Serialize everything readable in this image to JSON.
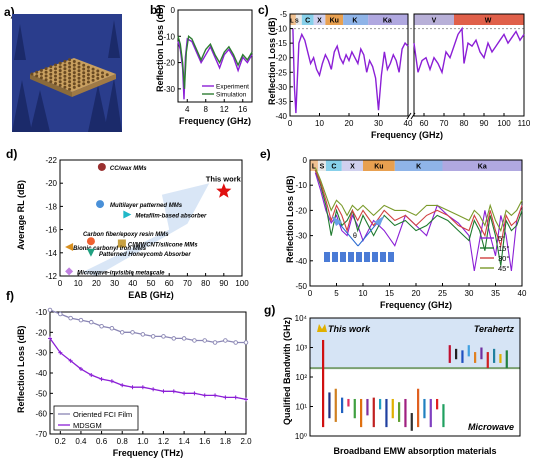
{
  "colors": {
    "purple": "#8b1fd6",
    "green": "#2e7d32",
    "gray_purple": "#8a86b4",
    "band_L": "#f0c090",
    "band_S": "#e8e8e8",
    "band_C": "#87d0ea",
    "band_X": "#d0d0ee",
    "band_Ku": "#e8a050",
    "band_K": "#8fb4e8",
    "band_Ka": "#b0a8e0",
    "band_V": "#b8b0d8",
    "band_W": "#e0604a"
  },
  "panel_labels": {
    "a": "a)",
    "b": "b)",
    "c": "c)",
    "d": "d)",
    "e": "e)",
    "f": "f)",
    "g": "g)"
  },
  "chart_data": [
    {
      "id": "b",
      "type": "line",
      "ylabel": "Reflection Loss (dB)",
      "xlabel": "Frequency (GHz)",
      "xlim": [
        2,
        18
      ],
      "ylim": [
        -35,
        0
      ],
      "xticks": [
        4,
        8,
        12,
        16
      ],
      "yticks": [
        0,
        -10,
        -20,
        -30
      ],
      "legend": {
        "position": "bottom-right"
      },
      "series": [
        {
          "name": "Experiment",
          "color": "#8b1fd6",
          "x": [
            2,
            2.5,
            3,
            3.3,
            3.6,
            4,
            5,
            6,
            7,
            8,
            9,
            10,
            11,
            12,
            13,
            14,
            15,
            16,
            17,
            18
          ],
          "y": [
            -12,
            -15,
            -22,
            -34,
            -18,
            -11,
            -12,
            -16,
            -20,
            -17,
            -14,
            -18,
            -22,
            -17,
            -15,
            -18,
            -23,
            -18,
            -20,
            -17
          ]
        },
        {
          "name": "Simulation",
          "color": "#2e7d32",
          "x": [
            2,
            2.5,
            3,
            3.4,
            3.8,
            4.3,
            5,
            6,
            7,
            8,
            9,
            10,
            11,
            12,
            13,
            14,
            15,
            16,
            17,
            18
          ],
          "y": [
            -10,
            -13,
            -20,
            -30,
            -16,
            -10,
            -11,
            -15,
            -19,
            -15,
            -13,
            -17,
            -20,
            -16,
            -14,
            -17,
            -21,
            -17,
            -19,
            -16
          ]
        }
      ]
    },
    {
      "id": "c",
      "type": "line",
      "ylabel": "Reflection Loss (dB)",
      "xlabel": "Frequency (GHz)",
      "ylim": [
        -40,
        -5
      ],
      "yticks": [
        -5,
        -10,
        -15,
        -20,
        -25,
        -30,
        -35,
        -40
      ],
      "segments": [
        {
          "xlim": [
            0,
            40
          ],
          "xticks": [
            0,
            10,
            20,
            30,
            40
          ]
        },
        {
          "xlim": [
            55,
            110
          ],
          "xticks": [
            60,
            70,
            80,
            90,
            100,
            110
          ]
        }
      ],
      "bands": [
        "L S",
        "C",
        "X",
        "Ku",
        "K",
        "Ka",
        "V",
        "W"
      ],
      "series": [
        {
          "color": "#8b1fd6",
          "x": [
            1,
            1.5,
            2,
            3,
            4,
            5,
            6,
            7,
            8,
            9,
            10,
            11,
            12,
            13,
            14,
            15,
            16,
            17,
            18,
            19,
            20,
            21,
            22,
            23,
            24,
            25,
            26,
            27,
            28,
            29,
            30,
            31,
            32,
            33,
            34,
            35,
            36,
            37,
            38,
            39,
            40
          ],
          "y": [
            -10,
            -30,
            -39,
            -15,
            -12,
            -14,
            -18,
            -22,
            -20,
            -24,
            -26,
            -22,
            -19,
            -21,
            -24,
            -18,
            -16,
            -20,
            -22,
            -19,
            -21,
            -18,
            -20,
            -22,
            -17,
            -19,
            -25,
            -21,
            -23,
            -27,
            -38,
            -26,
            -18,
            -24,
            -22,
            -19,
            -21,
            -25,
            -17,
            -15,
            -16
          ]
        },
        {
          "color": "#8b1fd6",
          "x": [
            55,
            57,
            59,
            61,
            63,
            65,
            67,
            69,
            71,
            73,
            75,
            77,
            79,
            80,
            82,
            84,
            86,
            88,
            90,
            92,
            94,
            96,
            98,
            100,
            102,
            104,
            106,
            108,
            110
          ],
          "y": [
            -15,
            -25,
            -21,
            -20,
            -24,
            -20,
            -22,
            -25,
            -18,
            -20,
            -16,
            -12,
            -10,
            -22,
            -15,
            -16,
            -14,
            -18,
            -20,
            -15,
            -18,
            -16,
            -14,
            -12,
            -15,
            -13,
            -11,
            -14,
            -12
          ]
        }
      ]
    },
    {
      "id": "d",
      "type": "scatter",
      "ylabel": "Average RL (dB)",
      "xlabel": "EAB (GHz)",
      "xlim": [
        0,
        100
      ],
      "ylim": [
        -12,
        -22
      ],
      "xticks": [
        0,
        10,
        20,
        30,
        40,
        50,
        60,
        70,
        80,
        90,
        100
      ],
      "yticks": [
        -12,
        -14,
        -16,
        -18,
        -20,
        -22
      ],
      "points": [
        {
          "label": "This work",
          "x": 90,
          "y": -19.3,
          "color": "#e01010",
          "marker": "star"
        },
        {
          "label": "CC/wax MMs",
          "x": 23,
          "y": -21.4,
          "color": "#9a3030",
          "marker": "hexagon"
        },
        {
          "label": "Multilayer patterned MMs",
          "x": 22,
          "y": -18.2,
          "color": "#4a90d8",
          "marker": "circle"
        },
        {
          "label": "Metafilm-based absorber",
          "x": 37,
          "y": -17.3,
          "color": "#20b8c8",
          "marker": "triangle-right"
        },
        {
          "label": "Carbon fiber/epoxy resin MMs",
          "x": 17,
          "y": -15.0,
          "color": "#f06030",
          "marker": "circle"
        },
        {
          "label": "CI/MWCNT/silicone MMs",
          "x": 34,
          "y": -14.8,
          "color": "#c8a040",
          "marker": "square"
        },
        {
          "label": "Bionic carbonyl iron MMs",
          "x": 5,
          "y": -14.5,
          "color": "#d89020",
          "marker": "triangle-left"
        },
        {
          "label": "Patterned Honeycomb Absorber",
          "x": 17,
          "y": -14.0,
          "color": "#20a080",
          "marker": "triangle-down"
        },
        {
          "label": "Microwave-invisible metascale",
          "x": 5,
          "y": -12.4,
          "color": "#c080e0",
          "marker": "diamond"
        }
      ]
    },
    {
      "id": "e",
      "type": "line",
      "ylabel": "Reflection Loss (dB)",
      "xlabel": "Frequency (GHz)",
      "xlim": [
        0,
        40
      ],
      "ylim": [
        -50,
        0
      ],
      "xticks": [
        0,
        5,
        10,
        15,
        20,
        25,
        30,
        35,
        40
      ],
      "yticks": [
        0,
        -10,
        -20,
        -30,
        -40,
        -50
      ],
      "bands": [
        "L",
        "S",
        "C",
        "X",
        "Ku",
        "K",
        "Ka"
      ],
      "legend": {
        "position": "right"
      },
      "series": [
        {
          "name": "5°",
          "color": "#8b1fd6",
          "x": [
            1,
            2,
            3,
            4,
            5,
            6,
            7,
            8,
            9,
            10,
            12,
            14,
            16,
            18,
            20,
            22,
            24,
            26,
            28,
            30,
            31,
            32,
            33,
            34,
            35,
            36,
            37,
            38,
            39,
            40
          ],
          "y": [
            -5,
            -12,
            -20,
            -25,
            -22,
            -28,
            -30,
            -22,
            -26,
            -32,
            -24,
            -28,
            -34,
            -22,
            -26,
            -30,
            -18,
            -22,
            -25,
            -30,
            -44,
            -32,
            -20,
            -30,
            -38,
            -22,
            -30,
            -44,
            -24,
            -18
          ]
        },
        {
          "name": "15°",
          "color": "#1e7a2e",
          "x": [
            1,
            2,
            3,
            4,
            5,
            6,
            7,
            8,
            9,
            10,
            12,
            14,
            16,
            18,
            20,
            22,
            24,
            26,
            28,
            30,
            31,
            32,
            33,
            34,
            35,
            36,
            37,
            38,
            39,
            40
          ],
          "y": [
            -4,
            -10,
            -18,
            -30,
            -20,
            -26,
            -24,
            -20,
            -28,
            -22,
            -30,
            -22,
            -26,
            -24,
            -28,
            -26,
            -22,
            -24,
            -28,
            -32,
            -24,
            -28,
            -36,
            -22,
            -30,
            -42,
            -24,
            -28,
            -26,
            -20
          ]
        },
        {
          "name": "30°",
          "color": "#d04040",
          "x": [
            1,
            2,
            3,
            4,
            5,
            6,
            7,
            8,
            9,
            10,
            12,
            14,
            16,
            18,
            20,
            22,
            24,
            26,
            28,
            30,
            31,
            32,
            33,
            34,
            35,
            36,
            37,
            38,
            39,
            40
          ],
          "y": [
            -4,
            -9,
            -16,
            -24,
            -18,
            -22,
            -28,
            -20,
            -24,
            -20,
            -26,
            -20,
            -24,
            -22,
            -26,
            -22,
            -20,
            -22,
            -26,
            -28,
            -22,
            -26,
            -30,
            -20,
            -28,
            -34,
            -22,
            -26,
            -24,
            -18
          ]
        },
        {
          "name": "45°",
          "color": "#7a9a2a",
          "x": [
            1,
            2,
            3,
            4,
            5,
            6,
            7,
            8,
            9,
            10,
            12,
            14,
            16,
            18,
            20,
            22,
            24,
            26,
            28,
            30,
            31,
            32,
            33,
            34,
            35,
            36,
            37,
            38,
            39,
            40
          ],
          "y": [
            -3,
            -8,
            -14,
            -20,
            -16,
            -18,
            -22,
            -18,
            -20,
            -18,
            -22,
            -18,
            -20,
            -20,
            -22,
            -18,
            -18,
            -20,
            -22,
            -24,
            -20,
            -22,
            -26,
            -18,
            -24,
            -28,
            -20,
            -22,
            -20,
            -16
          ]
        }
      ]
    },
    {
      "id": "f",
      "type": "line",
      "ylabel": "Reflection Loss (dB)",
      "xlabel": "Frequency (THz)",
      "xlim": [
        0.1,
        2.0
      ],
      "ylim": [
        -70,
        -10
      ],
      "xticks": [
        0.2,
        0.4,
        0.6,
        0.8,
        1.0,
        1.2,
        1.4,
        1.6,
        1.8,
        2.0
      ],
      "yticks": [
        -10,
        -20,
        -30,
        -40,
        -50,
        -60,
        -70
      ],
      "legend": {
        "position": "bottom-left"
      },
      "series": [
        {
          "name": "Oriented FCI Film",
          "color": "#8a86b4",
          "marker": "open-circle",
          "x": [
            0.1,
            0.2,
            0.3,
            0.4,
            0.5,
            0.6,
            0.7,
            0.8,
            0.9,
            1.0,
            1.1,
            1.2,
            1.3,
            1.4,
            1.5,
            1.6,
            1.7,
            1.8,
            1.9,
            2.0
          ],
          "y": [
            -9,
            -11,
            -13,
            -14,
            -15,
            -17,
            -18,
            -20,
            -20,
            -21,
            -22,
            -22,
            -23,
            -23,
            -24,
            -24,
            -25,
            -24,
            -25,
            -25
          ]
        },
        {
          "name": "MDSGM",
          "color": "#8b1fd6",
          "marker": "plus",
          "x": [
            0.1,
            0.2,
            0.3,
            0.4,
            0.5,
            0.6,
            0.7,
            0.8,
            0.9,
            1.0,
            1.1,
            1.2,
            1.3,
            1.4,
            1.5,
            1.6,
            1.7,
            1.8,
            1.9,
            2.0
          ],
          "y": [
            -23,
            -30,
            -34,
            -38,
            -41,
            -43,
            -44,
            -46,
            -47,
            -47,
            -48,
            -49,
            -49,
            -50,
            -50,
            -51,
            -51,
            -52,
            -52,
            -53
          ]
        }
      ]
    },
    {
      "id": "g",
      "type": "bar",
      "ylabel": "Qualified Bandwith (GHz)",
      "xlabel": "Broadband EMW absorption materials",
      "yscale": "log",
      "ylim": [
        1,
        10000
      ],
      "yticks": [
        "10⁰",
        "10¹",
        "10²",
        "10³",
        "10⁴"
      ],
      "annotations": [
        "This work",
        "Terahertz",
        "Microwave"
      ],
      "bars": [
        {
          "low": 2,
          "high": 1800,
          "color": "#d01010"
        },
        {
          "low": 4,
          "high": 30,
          "color": "#203080"
        },
        {
          "low": 3,
          "high": 40,
          "color": "#d08020"
        },
        {
          "low": 6,
          "high": 20,
          "color": "#2060c0"
        },
        {
          "low": 10,
          "high": 18,
          "color": "#e03060"
        },
        {
          "low": 4,
          "high": 18,
          "color": "#40a040"
        },
        {
          "low": 2,
          "high": 18,
          "color": "#e07010"
        },
        {
          "low": 5,
          "high": 18,
          "color": "#8030a0"
        },
        {
          "low": 2,
          "high": 20,
          "color": "#c02020"
        },
        {
          "low": 8,
          "high": 18,
          "color": "#20a0c0"
        },
        {
          "low": 2,
          "high": 18,
          "color": "#2040a0"
        },
        {
          "low": 4,
          "high": 18,
          "color": "#e0b000"
        },
        {
          "low": 3,
          "high": 14,
          "color": "#60a030"
        },
        {
          "low": 2,
          "high": 18,
          "color": "#a02080"
        },
        {
          "low": 1.5,
          "high": 6,
          "color": "#303030"
        },
        {
          "low": 2,
          "high": 40,
          "color": "#e06020"
        },
        {
          "low": 4,
          "high": 18,
          "color": "#2080c0"
        },
        {
          "low": 2,
          "high": 18,
          "color": "#8040c0"
        },
        {
          "low": 8,
          "high": 18,
          "color": "#e02020"
        },
        {
          "low": 2,
          "high": 12,
          "color": "#20a060"
        },
        {
          "low": 300,
          "high": 1200,
          "color": "#c01030"
        },
        {
          "low": 400,
          "high": 900,
          "color": "#202020"
        },
        {
          "low": 300,
          "high": 800,
          "color": "#2050c0"
        },
        {
          "low": 500,
          "high": 1200,
          "color": "#40a0e0"
        },
        {
          "low": 300,
          "high": 700,
          "color": "#e08020"
        },
        {
          "low": 400,
          "high": 1000,
          "color": "#7030a0"
        },
        {
          "low": 200,
          "high": 700,
          "color": "#d02020"
        },
        {
          "low": 300,
          "high": 900,
          "color": "#2080a0"
        },
        {
          "low": 300,
          "high": 600,
          "color": "#e0b000"
        },
        {
          "low": 200,
          "high": 800,
          "color": "#208040"
        }
      ]
    }
  ]
}
